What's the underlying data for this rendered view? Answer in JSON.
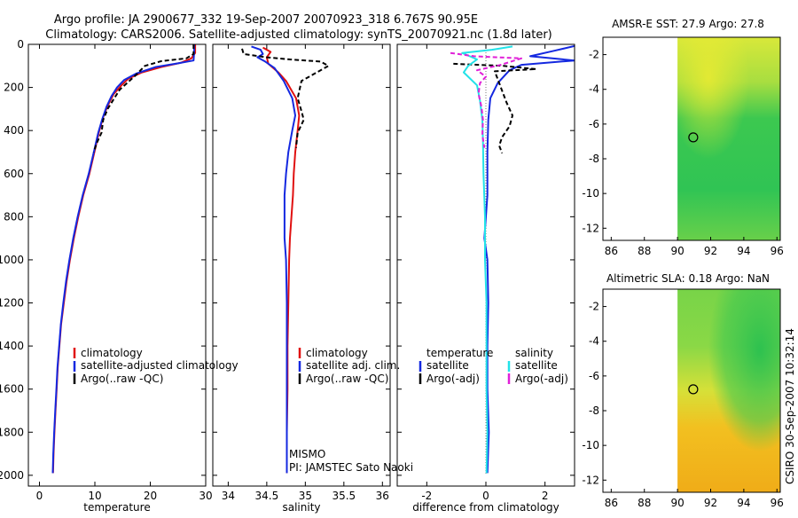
{
  "header": {
    "title_line1": "Argo profile: JA 2900677_332 19-Sep-2007 20070923_318 6.767S 90.95E",
    "title_line2": "Climatology: CARS2006. Satellite-adjusted climatology: synTS_20070921.nc (1.8d later)"
  },
  "side_stamp": "CSIRO 30-Sep-2007 10:32:14",
  "colors": {
    "red": "#e01010",
    "blue": "#1428e0",
    "black": "#000000",
    "cyan": "#22e2e8",
    "magenta": "#e020d8"
  },
  "chart_data": [
    {
      "type": "line",
      "id": "temperature",
      "xlabel": "temperature",
      "xlim": [
        -2,
        30
      ],
      "ylim": [
        0,
        2050
      ],
      "y_reversed": true,
      "xticks": [
        0,
        10,
        20,
        30
      ],
      "yticks": [
        0,
        200,
        400,
        600,
        800,
        1000,
        1200,
        1400,
        1600,
        1800,
        2000
      ],
      "legend": [
        "climatology",
        "satellite-adjusted climatology",
        "Argo(..raw -QC)"
      ],
      "series": [
        {
          "name": "climatology",
          "color": "red",
          "dash": "",
          "points": [
            [
              28.1,
              0
            ],
            [
              28.1,
              40
            ],
            [
              27.4,
              65
            ],
            [
              25.6,
              85
            ],
            [
              22,
              105
            ],
            [
              18.5,
              130
            ],
            [
              16,
              160
            ],
            [
              14.8,
              190
            ],
            [
              13.4,
              230
            ],
            [
              12.4,
              280
            ],
            [
              11.6,
              330
            ],
            [
              10.8,
              400
            ],
            [
              10.1,
              480
            ],
            [
              9,
              600
            ],
            [
              7.9,
              700
            ],
            [
              7,
              800
            ],
            [
              6.2,
              900
            ],
            [
              5.5,
              1000
            ],
            [
              4.9,
              1100
            ],
            [
              4.4,
              1200
            ],
            [
              3.9,
              1300
            ],
            [
              3.6,
              1400
            ],
            [
              3.3,
              1500
            ],
            [
              3.1,
              1600
            ],
            [
              2.9,
              1700
            ],
            [
              2.7,
              1800
            ],
            [
              2.55,
              1900
            ],
            [
              2.45,
              1990
            ]
          ]
        },
        {
          "name": "satellite-adjusted climatology",
          "color": "blue",
          "dash": "",
          "points": [
            [
              27.9,
              0
            ],
            [
              27.9,
              40
            ],
            [
              27.8,
              75
            ],
            [
              25,
              88
            ],
            [
              21,
              105
            ],
            [
              17.5,
              135
            ],
            [
              15.3,
              165
            ],
            [
              14,
              200
            ],
            [
              13,
              240
            ],
            [
              12.1,
              290
            ],
            [
              11.3,
              350
            ],
            [
              10.6,
              410
            ],
            [
              9.9,
              490
            ],
            [
              8.9,
              600
            ],
            [
              7.8,
              700
            ],
            [
              6.9,
              800
            ],
            [
              6.1,
              900
            ],
            [
              5.4,
              1000
            ],
            [
              4.8,
              1100
            ],
            [
              4.3,
              1200
            ],
            [
              3.85,
              1300
            ],
            [
              3.55,
              1400
            ],
            [
              3.25,
              1500
            ],
            [
              3.05,
              1600
            ],
            [
              2.85,
              1700
            ],
            [
              2.65,
              1800
            ],
            [
              2.5,
              1900
            ],
            [
              2.4,
              1990
            ]
          ]
        },
        {
          "name": "Argo(..raw -QC)",
          "color": "black",
          "dash": "5,3",
          "points": [
            [
              27.8,
              0
            ],
            [
              27.8,
              45
            ],
            [
              26.5,
              65
            ],
            [
              22,
              78
            ],
            [
              19,
              100
            ],
            [
              17.5,
              140
            ],
            [
              16,
              175
            ],
            [
              14.5,
              210
            ],
            [
              13.5,
              250
            ],
            [
              12.3,
              300
            ],
            [
              11.5,
              350
            ],
            [
              11.2,
              410
            ],
            [
              10.3,
              460
            ],
            [
              9.8,
              500
            ]
          ]
        }
      ]
    },
    {
      "type": "line",
      "id": "salinity",
      "xlabel": "salinity",
      "xlim": [
        33.8,
        36.1
      ],
      "ylim": [
        0,
        2050
      ],
      "y_reversed": true,
      "xticks": [
        34,
        34.5,
        35,
        35.5,
        36
      ],
      "xticklabels": [
        "34",
        "34.5",
        "35",
        "35.5",
        "36"
      ],
      "legend": [
        "climatology",
        "satellite adj. clim.",
        "Argo(..raw -QC)"
      ],
      "annotations": [
        "MISMO",
        "PI: JAMSTEC Sato Naoki"
      ],
      "series": [
        {
          "name": "climatology",
          "color": "red",
          "dash": "",
          "points": [
            [
              34.45,
              15
            ],
            [
              34.55,
              35
            ],
            [
              34.5,
              60
            ],
            [
              34.52,
              90
            ],
            [
              34.65,
              130
            ],
            [
              34.75,
              170
            ],
            [
              34.88,
              250
            ],
            [
              34.92,
              330
            ],
            [
              34.9,
              400
            ],
            [
              34.87,
              500
            ],
            [
              34.85,
              600
            ],
            [
              34.84,
              700
            ],
            [
              34.82,
              800
            ],
            [
              34.8,
              900
            ],
            [
              34.79,
              1000
            ],
            [
              34.78,
              1200
            ],
            [
              34.77,
              1400
            ],
            [
              34.77,
              1600
            ],
            [
              34.76,
              1800
            ],
            [
              34.76,
              1990
            ]
          ]
        },
        {
          "name": "satellite adj. clim.",
          "color": "blue",
          "dash": "",
          "points": [
            [
              34.3,
              10
            ],
            [
              34.42,
              25
            ],
            [
              34.45,
              45
            ],
            [
              34.38,
              60
            ],
            [
              34.48,
              80
            ],
            [
              34.6,
              110
            ],
            [
              34.72,
              170
            ],
            [
              34.83,
              250
            ],
            [
              34.87,
              330
            ],
            [
              34.83,
              400
            ],
            [
              34.78,
              500
            ],
            [
              34.75,
              600
            ],
            [
              34.73,
              700
            ],
            [
              34.73,
              800
            ],
            [
              34.73,
              900
            ],
            [
              34.75,
              1000
            ],
            [
              34.76,
              1200
            ],
            [
              34.76,
              1400
            ],
            [
              34.76,
              1600
            ],
            [
              34.76,
              1800
            ],
            [
              34.76,
              1990
            ]
          ]
        },
        {
          "name": "Argo(..raw -QC)",
          "color": "black",
          "dash": "5,3",
          "points": [
            [
              34.18,
              20
            ],
            [
              34.2,
              45
            ],
            [
              34.5,
              60
            ],
            [
              34.8,
              70
            ],
            [
              35.2,
              80
            ],
            [
              35.3,
              100
            ],
            [
              35.1,
              140
            ],
            [
              34.95,
              170
            ],
            [
              34.9,
              250
            ],
            [
              34.95,
              310
            ],
            [
              34.98,
              350
            ],
            [
              34.9,
              410
            ],
            [
              34.88,
              480
            ]
          ]
        }
      ]
    },
    {
      "type": "line",
      "id": "difference",
      "xlabel": "difference from climatology",
      "xlim": [
        -3,
        3
      ],
      "ylim": [
        0,
        2050
      ],
      "y_reversed": true,
      "xticks": [
        -2,
        0,
        2
      ],
      "legend_left": [
        "temperature",
        "satellite",
        "Argo(-adj)"
      ],
      "legend_right": [
        "salinity",
        "satellite",
        "Argo(-adj)"
      ],
      "series": [
        {
          "name": "temperature satellite",
          "color": "blue",
          "dash": "",
          "points": [
            [
              3,
              8
            ],
            [
              2.3,
              30
            ],
            [
              1.5,
              55
            ],
            [
              3,
              75
            ],
            [
              1.2,
              95
            ],
            [
              0.8,
              120
            ],
            [
              0.4,
              180
            ],
            [
              0.15,
              250
            ],
            [
              0.08,
              350
            ],
            [
              0.05,
              500
            ],
            [
              0.05,
              700
            ],
            [
              -0.05,
              900
            ],
            [
              0.05,
              1000
            ],
            [
              0.08,
              1200
            ],
            [
              0.05,
              1400
            ],
            [
              0.05,
              1600
            ],
            [
              0.1,
              1800
            ],
            [
              0.05,
              1990
            ]
          ]
        },
        {
          "name": "temperature Argo(-adj)",
          "color": "black",
          "dash": "5,3",
          "points": [
            [
              -1.1,
              90
            ],
            [
              0.6,
              100
            ],
            [
              1.7,
              115
            ],
            [
              0.3,
              125
            ],
            [
              0.7,
              270
            ],
            [
              0.9,
              330
            ],
            [
              0.8,
              380
            ],
            [
              0.55,
              430
            ],
            [
              0.45,
              470
            ],
            [
              0.55,
              505
            ]
          ]
        },
        {
          "name": "salinity satellite",
          "color": "cyan",
          "dash": "",
          "points": [
            [
              0.9,
              10
            ],
            [
              0.2,
              25
            ],
            [
              -0.8,
              40
            ],
            [
              -0.3,
              70
            ],
            [
              -0.6,
              100
            ],
            [
              -0.75,
              130
            ],
            [
              -0.3,
              190
            ],
            [
              -0.2,
              260
            ],
            [
              -0.12,
              350
            ],
            [
              -0.1,
              450
            ],
            [
              -0.08,
              600
            ],
            [
              -0.03,
              800
            ],
            [
              -0.03,
              1000
            ],
            [
              0.02,
              1200
            ],
            [
              0.02,
              1400
            ],
            [
              0.02,
              1600
            ],
            [
              0.05,
              1800
            ],
            [
              0.02,
              1990
            ]
          ]
        },
        {
          "name": "salinity Argo(-adj)",
          "color": "magenta",
          "dash": "5,3",
          "points": [
            [
              -1.2,
              40
            ],
            [
              -0.4,
              55
            ],
            [
              1.2,
              65
            ],
            [
              0.5,
              95
            ],
            [
              -0.3,
              120
            ],
            [
              0,
              150
            ],
            [
              -0.2,
              180
            ],
            [
              -0.25,
              230
            ],
            [
              -0.15,
              290
            ],
            [
              -0.1,
              350
            ],
            [
              -0.12,
              420
            ],
            [
              -0.05,
              480
            ]
          ]
        }
      ]
    },
    {
      "type": "heatmap",
      "id": "sst_map",
      "title": "AMSR-E SST: 27.9 Argo: 27.8",
      "xlim": [
        85.5,
        96.2
      ],
      "ylim": [
        -12.7,
        -1
      ],
      "xticks": [
        86,
        88,
        90,
        92,
        94,
        96
      ],
      "yticks": [
        -2,
        -4,
        -6,
        -8,
        -10,
        -12
      ],
      "data_xlim": [
        90,
        96.2
      ],
      "argo_marker": [
        90.95,
        -6.767
      ]
    },
    {
      "type": "heatmap",
      "id": "sla_map",
      "title": "Altimetric SLA: 0.18 Argo: NaN",
      "xlim": [
        85.5,
        96.2
      ],
      "ylim": [
        -12.7,
        -1
      ],
      "xticks": [
        86,
        88,
        90,
        92,
        94,
        96
      ],
      "yticks": [
        -2,
        -4,
        -6,
        -8,
        -10,
        -12
      ],
      "data_xlim": [
        90,
        96.2
      ],
      "argo_marker": [
        90.95,
        -6.767
      ]
    }
  ]
}
